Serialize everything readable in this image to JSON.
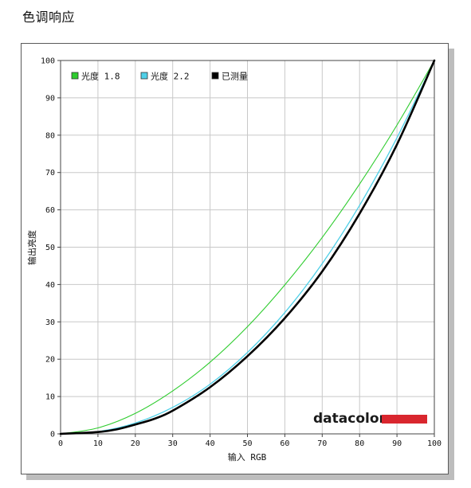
{
  "page": {
    "heading": "色调响应"
  },
  "brand": {
    "name": "datacolor",
    "bar_color": "#d9262e"
  },
  "colors": {
    "gamma18": "#2ecc2e",
    "gamma22": "#4fd0e8",
    "measured": "#000000",
    "grid": "#c8c8c8"
  },
  "chart_data": {
    "type": "line",
    "title": "",
    "xlabel": "输入 RGB",
    "ylabel": "输出亮度",
    "xlim": [
      0,
      100
    ],
    "ylim": [
      0,
      100
    ],
    "x_ticks": [
      0,
      10,
      20,
      30,
      40,
      50,
      60,
      70,
      80,
      90,
      100
    ],
    "y_ticks": [
      0,
      10,
      20,
      30,
      40,
      50,
      60,
      70,
      80,
      90,
      100
    ],
    "grid": true,
    "legend_position": "top-left",
    "series": [
      {
        "name": "光度 1.8",
        "color": "#2ecc2e",
        "x": [
          0,
          10,
          20,
          30,
          40,
          50,
          60,
          70,
          80,
          90,
          100
        ],
        "y": [
          0,
          1.6,
          5.5,
          11.5,
          19.2,
          28.7,
          39.9,
          52.6,
          66.9,
          82.7,
          100
        ]
      },
      {
        "name": "光度 2.2",
        "color": "#4fd0e8",
        "x": [
          0,
          10,
          20,
          30,
          40,
          50,
          60,
          70,
          80,
          90,
          100
        ],
        "y": [
          0,
          0.6,
          2.9,
          7.1,
          13.3,
          21.8,
          32.5,
          45.6,
          61.2,
          79.3,
          100
        ]
      },
      {
        "name": "已测量",
        "color": "#000000",
        "x": [
          0,
          10,
          15,
          20,
          25,
          30,
          40,
          50,
          60,
          70,
          80,
          90,
          100
        ],
        "y": [
          0,
          0.5,
          1.2,
          2.5,
          4.0,
          6.2,
          12.5,
          20.8,
          31.0,
          43.5,
          59.0,
          77.5,
          100
        ]
      }
    ]
  }
}
